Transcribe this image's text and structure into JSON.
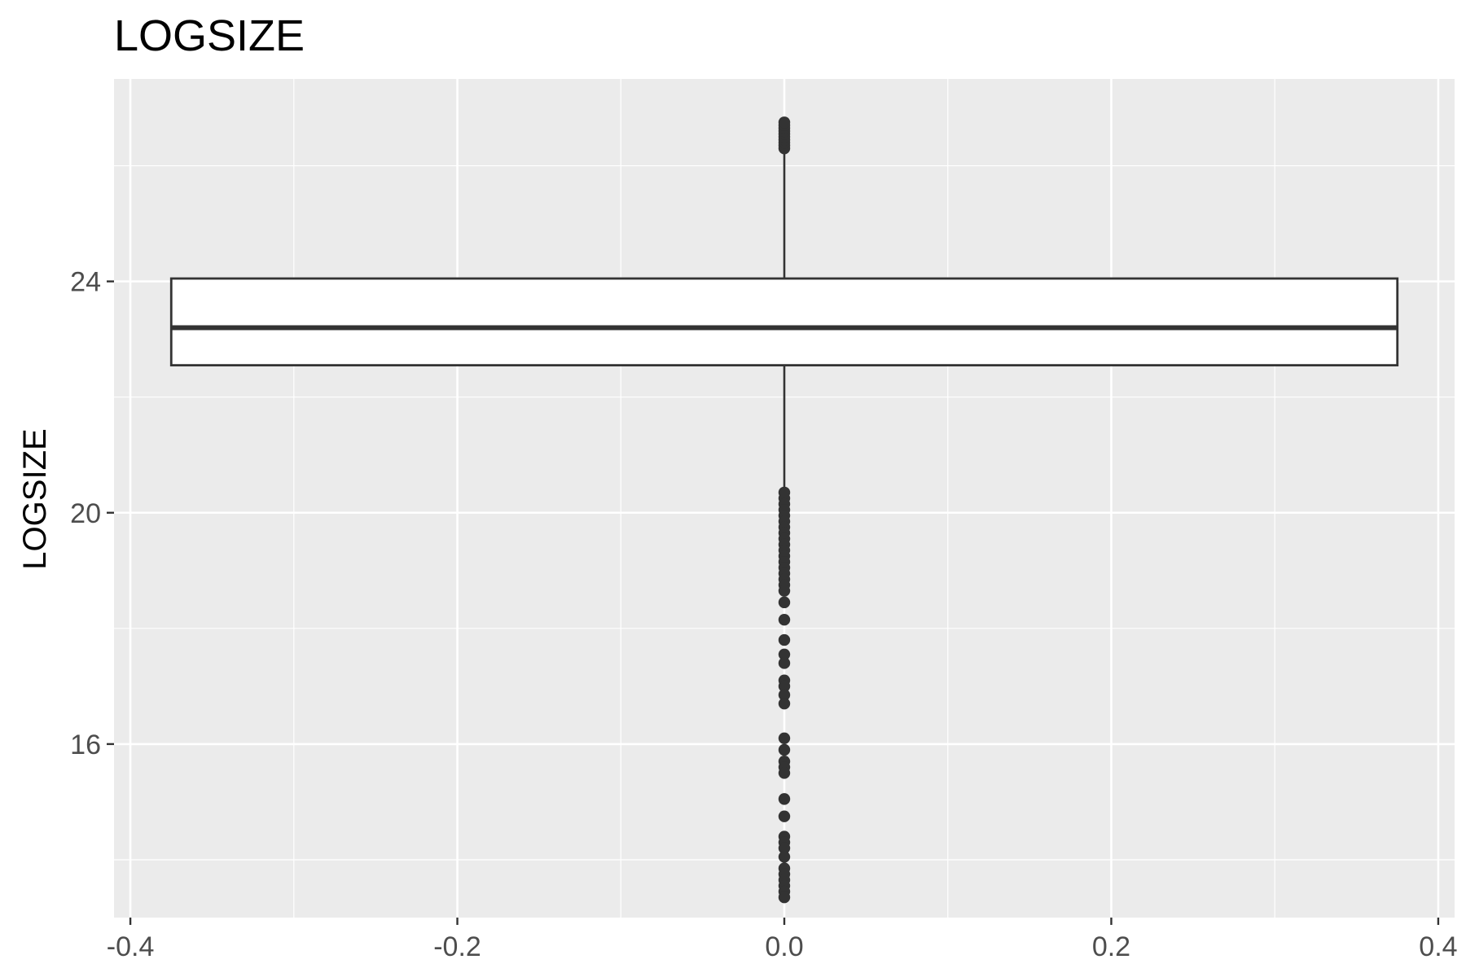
{
  "chart_data": {
    "type": "boxplot",
    "title": "LOGSIZE",
    "xlabel": "",
    "ylabel": "LOGSIZE",
    "xlim": [
      -0.41,
      0.41
    ],
    "ylim": [
      13.0,
      27.5
    ],
    "x_ticks": [
      -0.4,
      -0.2,
      0.0,
      0.2,
      0.4
    ],
    "x_tick_labels": [
      "-0.4",
      "-0.2",
      "0.0",
      "0.2",
      "0.4"
    ],
    "y_ticks": [
      16,
      20,
      24
    ],
    "y_tick_labels": [
      "16",
      "20",
      "24"
    ],
    "grid": true,
    "legend": "none",
    "box": {
      "x": 0.0,
      "xmin": -0.375,
      "xmax": 0.375,
      "q1": 22.55,
      "median": 23.2,
      "q3": 24.05,
      "whisker_low": 20.35,
      "whisker_high": 26.25
    },
    "outliers": [
      26.3,
      26.35,
      26.4,
      26.45,
      26.5,
      26.55,
      26.6,
      26.65,
      26.7,
      26.75,
      20.35,
      20.25,
      20.15,
      20.05,
      19.95,
      19.85,
      19.75,
      19.65,
      19.55,
      19.45,
      19.35,
      19.25,
      19.15,
      19.05,
      18.95,
      18.85,
      18.75,
      18.65,
      18.45,
      18.15,
      17.8,
      17.55,
      17.4,
      17.1,
      17.0,
      16.85,
      16.7,
      16.1,
      15.9,
      15.7,
      15.6,
      15.5,
      15.05,
      14.75,
      14.4,
      14.3,
      14.2,
      14.05,
      13.85,
      13.75,
      13.65,
      13.55,
      13.45,
      13.35
    ],
    "colors": {
      "panel_background": "#ebebeb",
      "grid": "#ffffff",
      "box_fill": "#ffffff",
      "box_line": "#333333",
      "point": "#333333"
    }
  }
}
